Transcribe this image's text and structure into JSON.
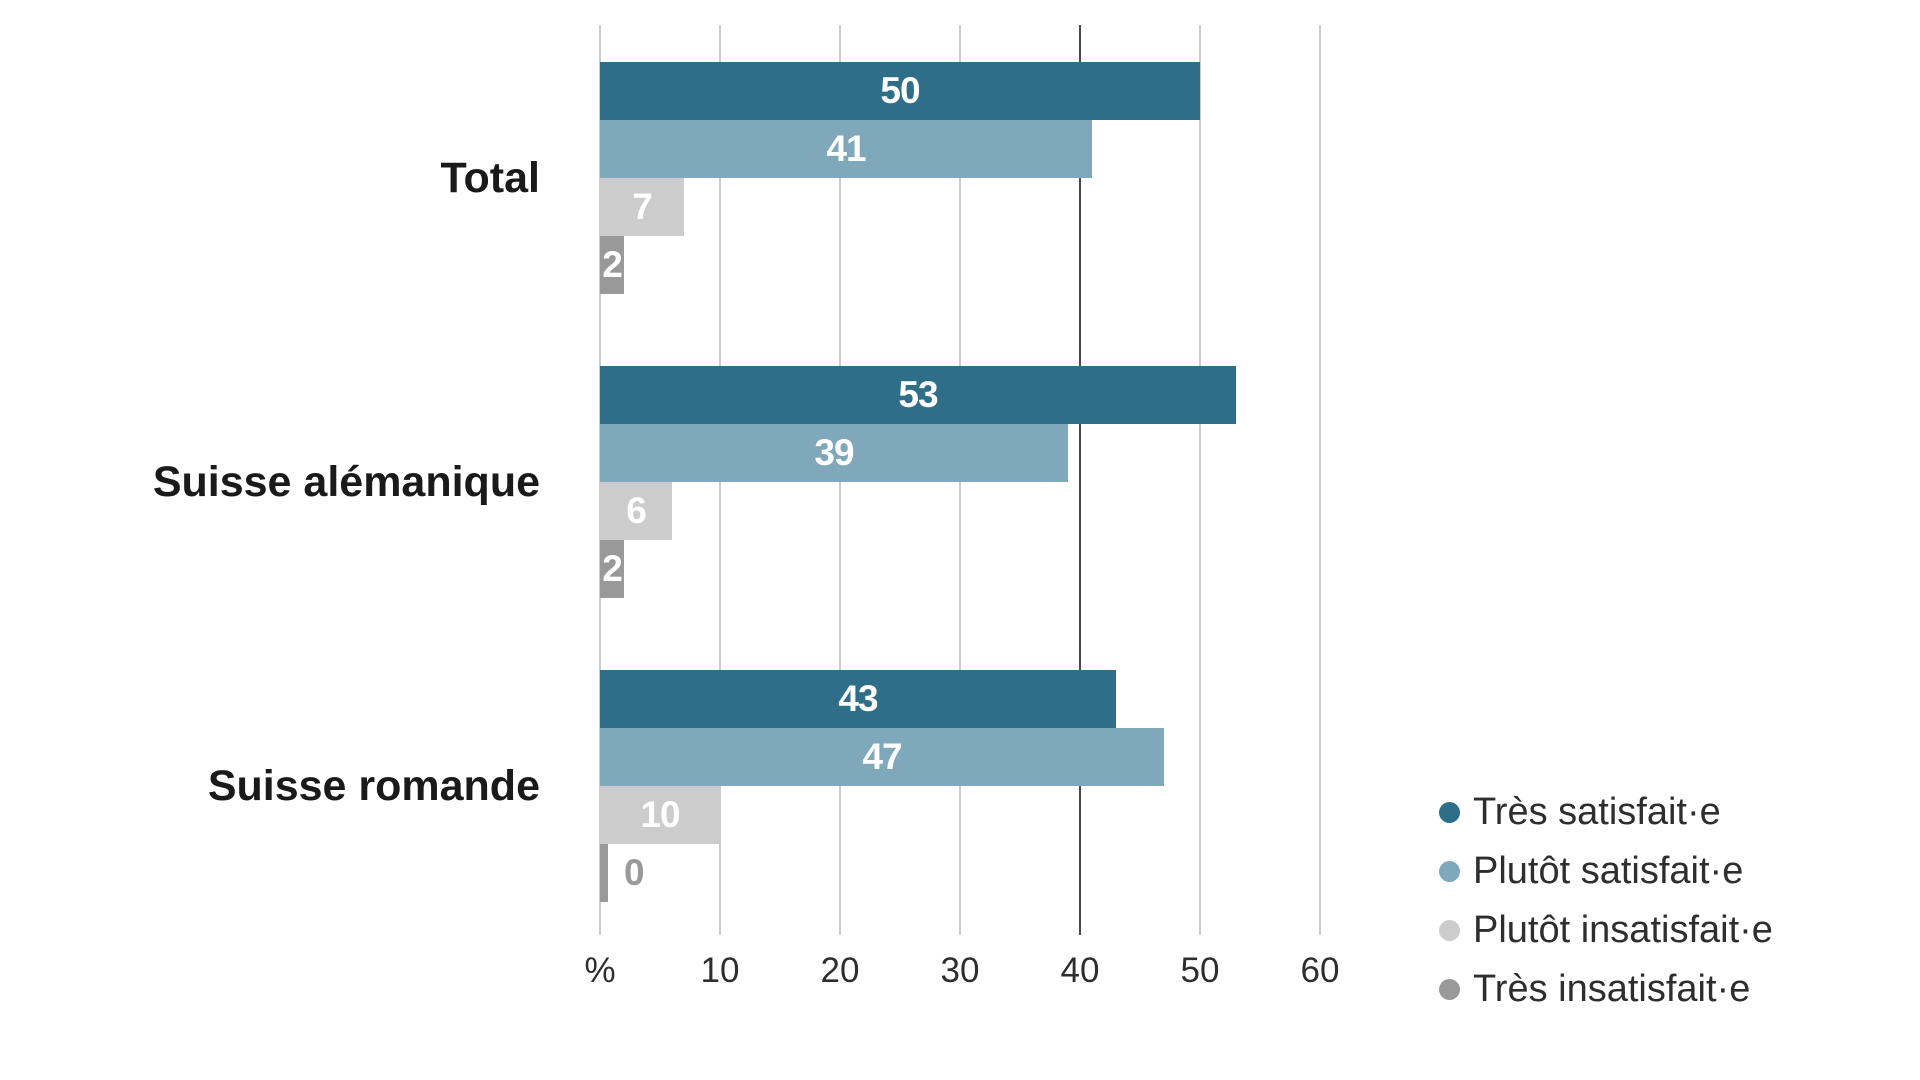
{
  "chart_data": {
    "type": "bar",
    "orientation": "horizontal",
    "title": "",
    "xlabel": "%",
    "ylabel": "",
    "categories": [
      "Total",
      "Suisse alémanique",
      "Suisse romande"
    ],
    "series": [
      {
        "name": "Très satisfait·e",
        "color": "#2e6e89",
        "values": [
          50,
          53,
          43
        ]
      },
      {
        "name": "Plutôt satisfait·e",
        "color": "#7fa9bb",
        "values": [
          41,
          39,
          47
        ]
      },
      {
        "name": "Plutôt insatisfait·e",
        "color": "#cccccc",
        "values": [
          7,
          6,
          10
        ]
      },
      {
        "name": "Très insatisfait·e",
        "color": "#999999",
        "values": [
          2,
          2,
          0
        ]
      }
    ],
    "xlim": [
      0,
      65
    ],
    "x_ticks": [
      {
        "label": "%",
        "value": 0
      },
      {
        "label": "10",
        "value": 10
      },
      {
        "label": "20",
        "value": 20
      },
      {
        "label": "30",
        "value": 30
      },
      {
        "label": "40",
        "value": 40
      },
      {
        "label": "50",
        "value": 50
      },
      {
        "label": "60",
        "value": 60
      }
    ],
    "emphasized_gridline_value": 40,
    "grid": true,
    "legend_position": "bottom-right",
    "value_labels": "inside-bars"
  },
  "colors": {
    "background": "#ffffff",
    "gridline": "#cbcbcb",
    "gridline_emphasis": "#474747",
    "axis_text": "#2e2e2e",
    "category_text": "#1a1a1a",
    "value_label_text": "#ffffff",
    "zero_value_label_text": "#9a9a9a",
    "legend_text": "#2e2e2e"
  }
}
